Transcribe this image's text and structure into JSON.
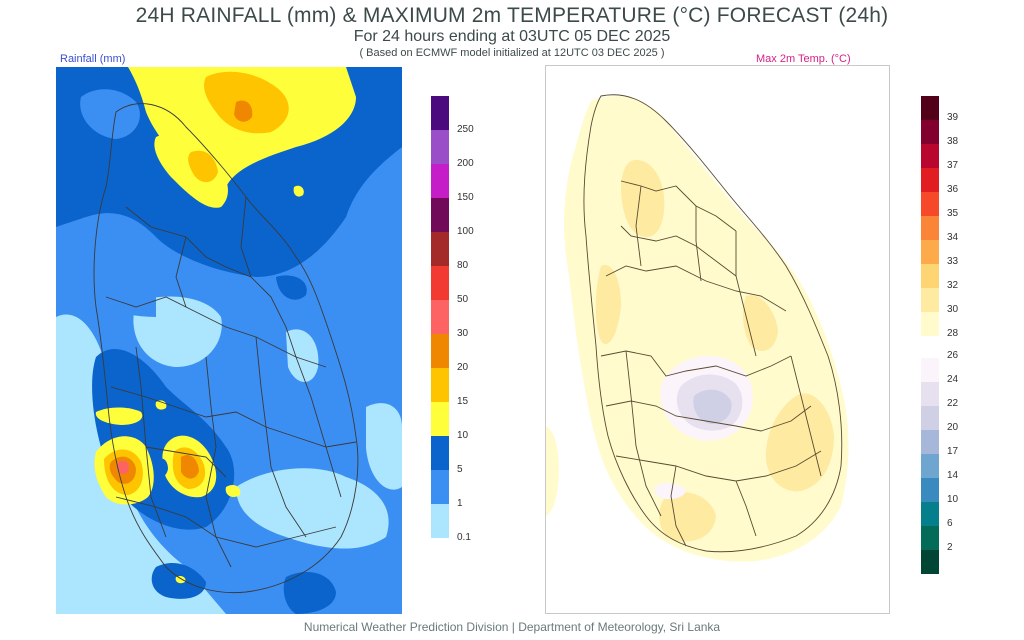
{
  "header": {
    "title": "24H RAINFALL (mm) & MAXIMUM 2m TEMPERATURE (°C) FORECAST (24h)",
    "subtitle": "For 24 hours ending at 03UTC 05 DEC 2025",
    "note": "( Based on ECMWF model initialized at 12UTC 03 DEC 2025 )"
  },
  "rain_panel": {
    "label": "Rainfall (mm)",
    "legend": [
      {
        "label": "250",
        "color": "#4b0a7d"
      },
      {
        "label": "200",
        "color": "#9a4fc9"
      },
      {
        "label": "150",
        "color": "#c51ec9"
      },
      {
        "label": "100",
        "color": "#720a5a"
      },
      {
        "label": "80",
        "color": "#a42a2a"
      },
      {
        "label": "50",
        "color": "#f23a32"
      },
      {
        "label": "30",
        "color": "#fe6363"
      },
      {
        "label": "20",
        "color": "#ef8800"
      },
      {
        "label": "15",
        "color": "#fec400"
      },
      {
        "label": "10",
        "color": "#fefe3a"
      },
      {
        "label": "5",
        "color": "#0a64cc"
      },
      {
        "label": "1",
        "color": "#3b8ff3"
      },
      {
        "label": "0.1",
        "color": "#ace6fe"
      }
    ]
  },
  "temp_panel": {
    "label": "Max 2m Temp. (°C)",
    "legend_upper": [
      {
        "label": "39",
        "color": "#520019"
      },
      {
        "label": "38",
        "color": "#82002e"
      },
      {
        "label": "37",
        "color": "#b8062f"
      },
      {
        "label": "36",
        "color": "#e11d21"
      },
      {
        "label": "35",
        "color": "#f5492a"
      },
      {
        "label": "34",
        "color": "#fb8536"
      },
      {
        "label": "33",
        "color": "#fdaa4a"
      },
      {
        "label": "32",
        "color": "#fed573"
      },
      {
        "label": "30",
        "color": "#feeaa0"
      },
      {
        "label": "28",
        "color": "#fffbcc"
      }
    ],
    "legend_lower": [
      {
        "label": "26",
        "color": "#fbf4fa"
      },
      {
        "label": "24",
        "color": "#e6e0ef"
      },
      {
        "label": "22",
        "color": "#cfd0e6"
      },
      {
        "label": "20",
        "color": "#a6b7da"
      },
      {
        "label": "17",
        "color": "#6ea6d0"
      },
      {
        "label": "14",
        "color": "#3a8ac0"
      },
      {
        "label": "10",
        "color": "#067f8c"
      },
      {
        "label": "6",
        "color": "#036b58"
      },
      {
        "label": "2",
        "color": "#014535"
      }
    ]
  },
  "footer": "Numerical Weather Prediction Division | Department of Meteorology, Sri Lanka"
}
